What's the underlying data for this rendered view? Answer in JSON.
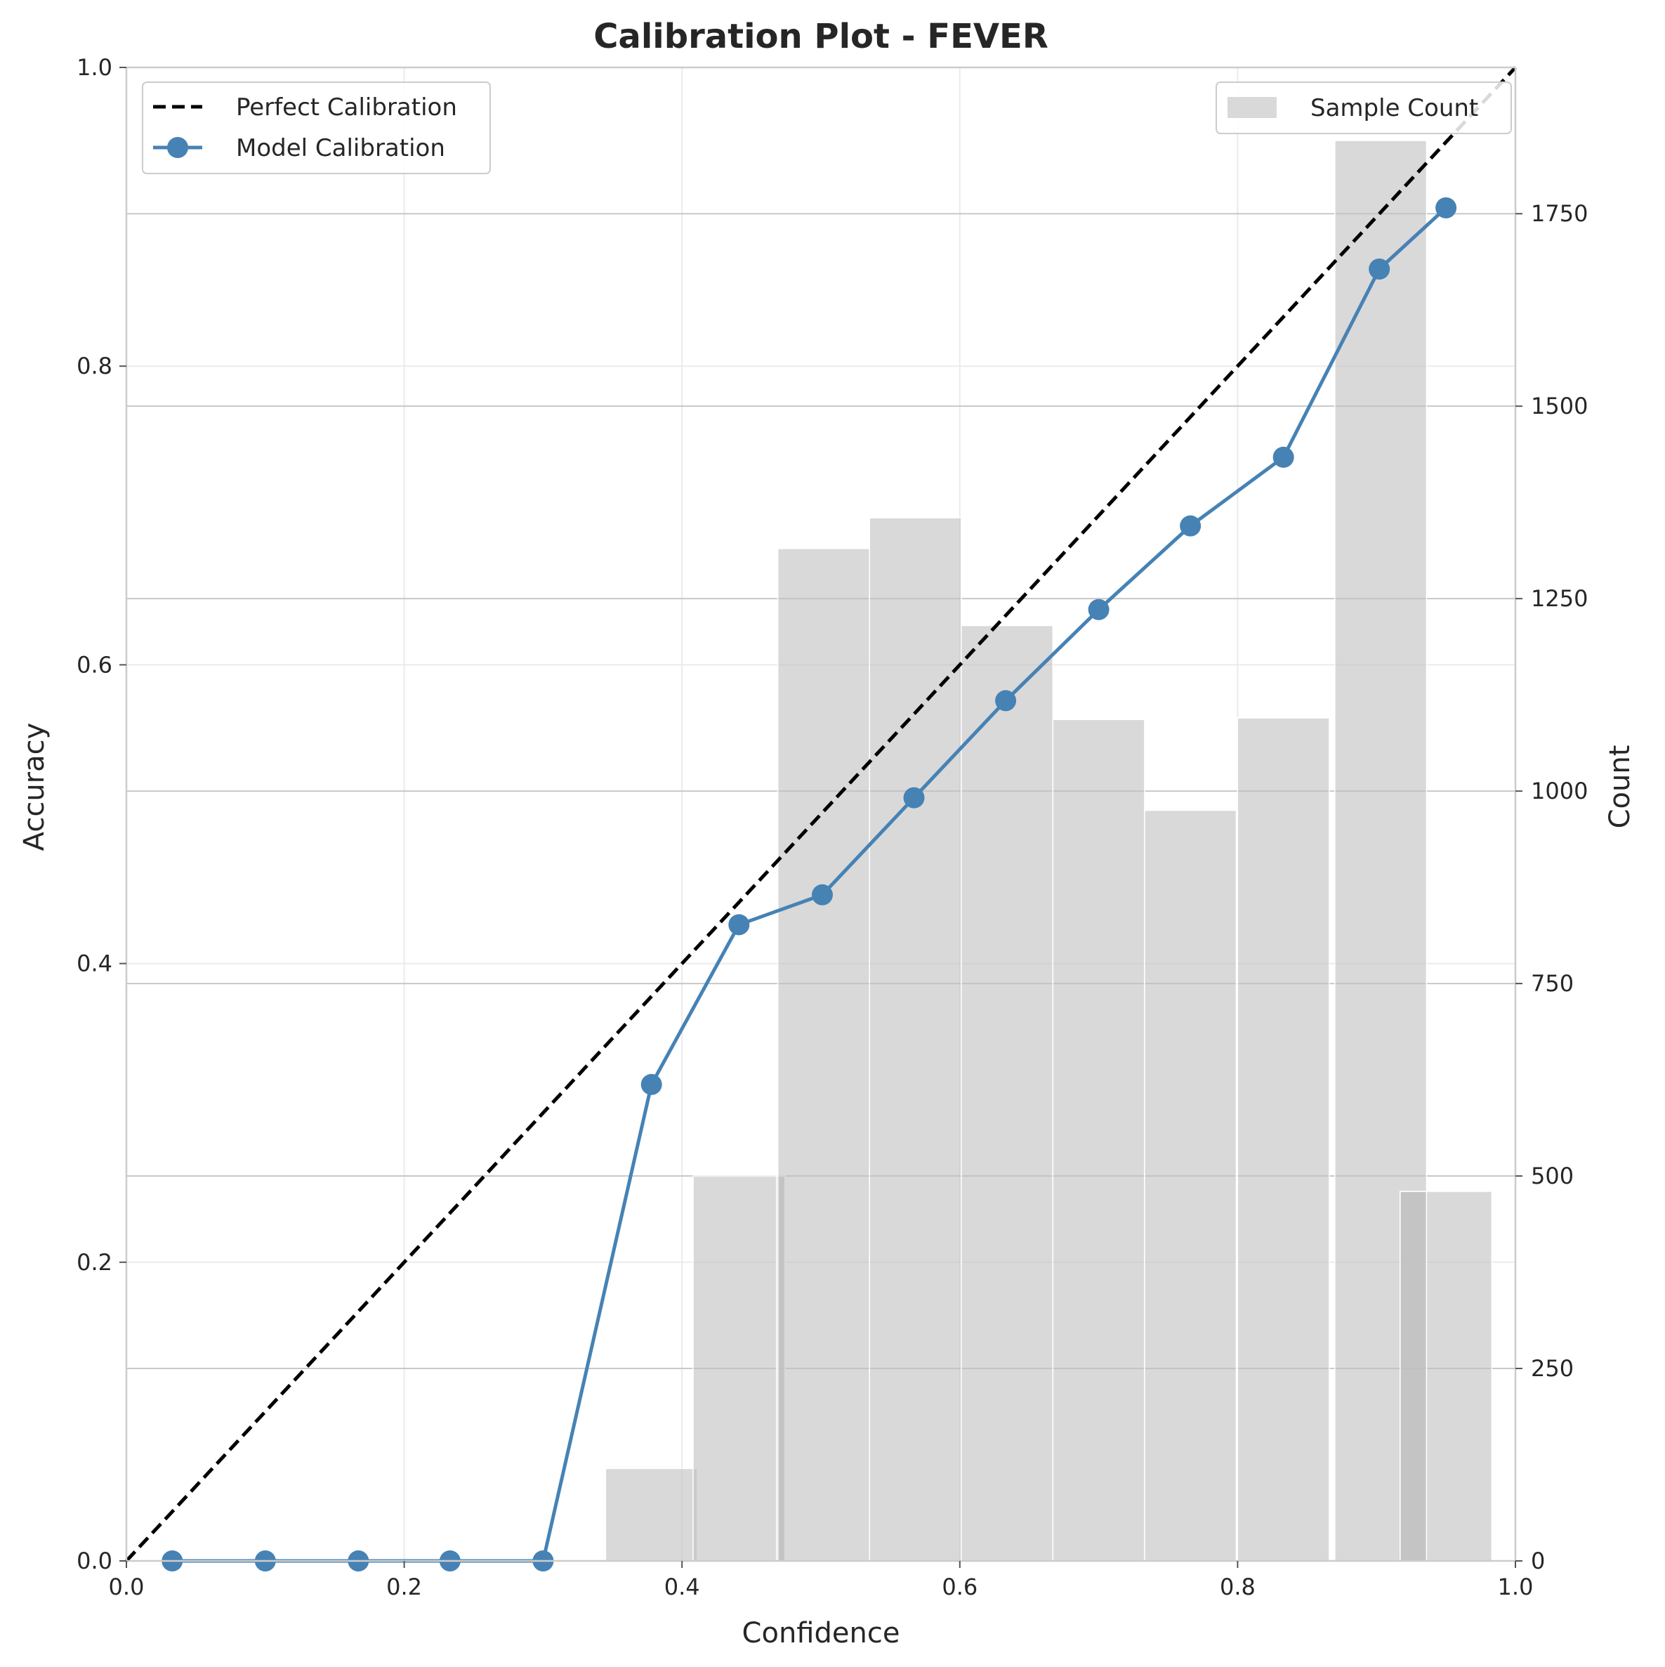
{
  "chart_data": {
    "type": "line",
    "title": "Calibration Plot - FEVER",
    "xlabel": "Confidence",
    "ylabel": "Accuracy",
    "y2label": "Count",
    "xlim": [
      0.0,
      1.0
    ],
    "ylim": [
      0.0,
      1.0
    ],
    "y2lim": [
      0,
      1940
    ],
    "x_ticks": [
      "0.0",
      "0.2",
      "0.4",
      "0.6",
      "0.8",
      "1.0"
    ],
    "y_ticks": [
      "0.0",
      "0.2",
      "0.4",
      "0.6",
      "0.8",
      "1.0"
    ],
    "y2_ticks": [
      "0",
      "250",
      "500",
      "750",
      "1000",
      "1250",
      "1500",
      "1750"
    ],
    "grid": true,
    "series": [
      {
        "name": "Perfect Calibration",
        "style": "dashed",
        "color": "#000000",
        "x": [
          0.0,
          1.0
        ],
        "y": [
          0.0,
          1.0
        ]
      },
      {
        "name": "Model Calibration",
        "style": "line-marker",
        "color": "#4682b4",
        "x": [
          0.033,
          0.1,
          0.167,
          0.233,
          0.3,
          0.378,
          0.441,
          0.501,
          0.567,
          0.633,
          0.7,
          0.766,
          0.833,
          0.902,
          0.95
        ],
        "y": [
          0.0,
          0.0,
          0.0,
          0.0,
          0.0,
          0.319,
          0.426,
          0.446,
          0.511,
          0.576,
          0.637,
          0.693,
          0.739,
          0.865,
          0.906
        ]
      }
    ],
    "histogram": {
      "name": "Sample Count",
      "color": "#bfbfbf",
      "bars": [
        {
          "x0": 0.345,
          "x1": 0.411,
          "count": 120
        },
        {
          "x0": 0.408,
          "x1": 0.474,
          "count": 500
        },
        {
          "x0": 0.468,
          "x1": 0.474,
          "count": 500
        },
        {
          "x0": 0.469,
          "x1": 0.535,
          "count": 1315
        },
        {
          "x0": 0.535,
          "x1": 0.601,
          "count": 1355
        },
        {
          "x0": 0.601,
          "x1": 0.667,
          "count": 1215
        },
        {
          "x0": 0.667,
          "x1": 0.733,
          "count": 1093
        },
        {
          "x0": 0.733,
          "x1": 0.799,
          "count": 975
        },
        {
          "x0": 0.8,
          "x1": 0.866,
          "count": 1095
        },
        {
          "x0": 0.87,
          "x1": 0.936,
          "count": 1845
        },
        {
          "x0": 0.917,
          "x1": 0.983,
          "count": 480
        },
        {
          "x0": 0.917,
          "x1": 0.936,
          "count": 480
        }
      ]
    },
    "legend_left": "upper-left",
    "legend_right": "upper-right"
  }
}
